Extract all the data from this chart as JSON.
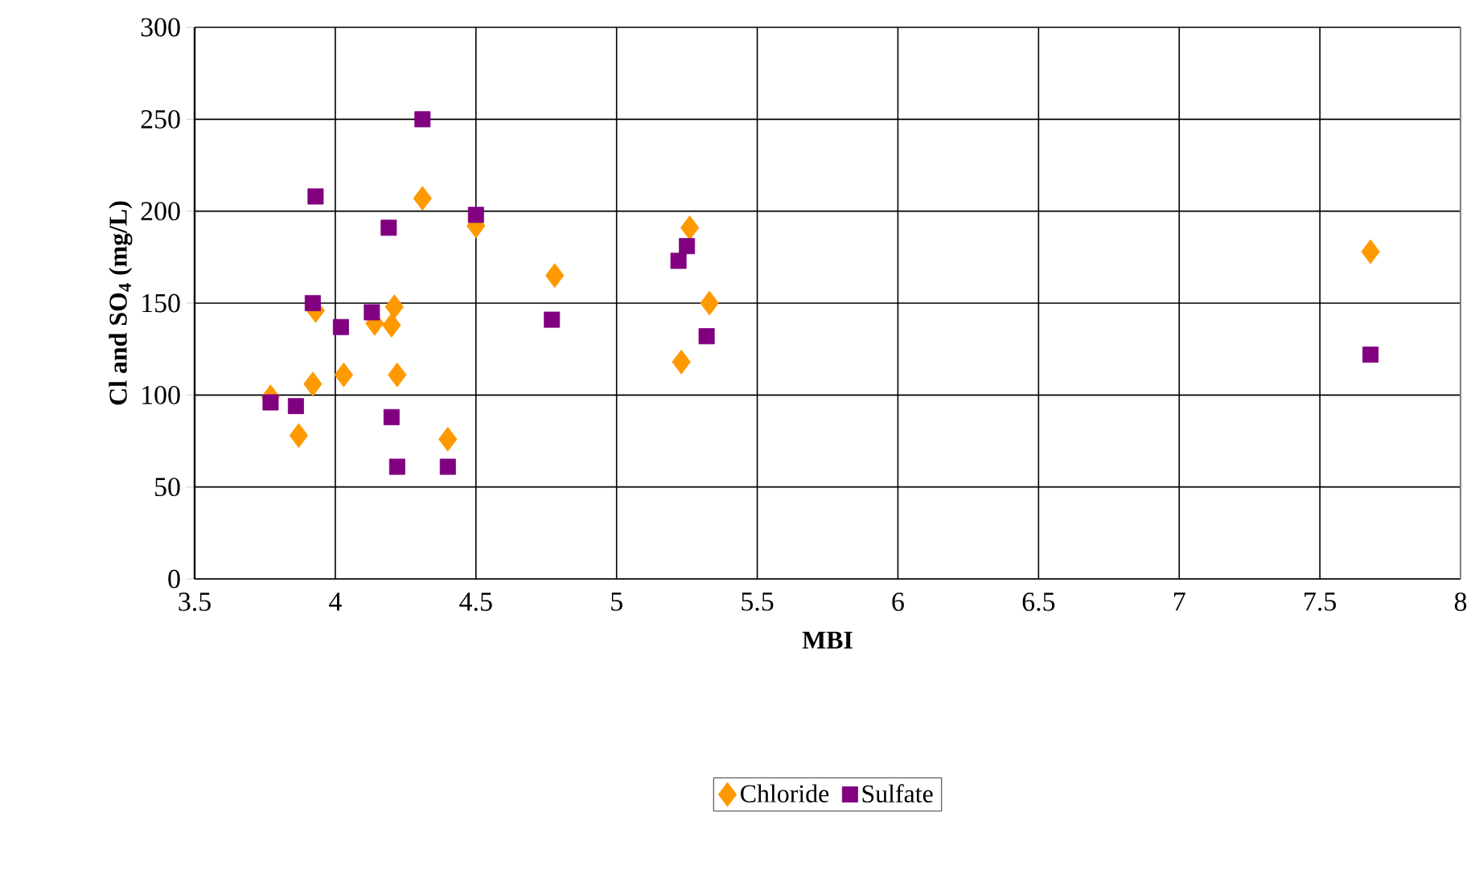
{
  "chart_data": {
    "type": "scatter",
    "xlabel": "MBI",
    "ylabel": "Cl and SO$_{4}$ (mg/L)",
    "xlim": [
      3.5,
      8
    ],
    "xticks": [
      3.5,
      4,
      4.5,
      5,
      5.5,
      6,
      6.5,
      7,
      7.5,
      8
    ],
    "ylim": [
      0,
      300
    ],
    "yticks": [
      0,
      50,
      100,
      150,
      200,
      250,
      300
    ],
    "grid": true,
    "legend": "bottom",
    "series": [
      {
        "name": "Chloride",
        "color": "#ff9900",
        "marker": "diamond",
        "x": [
          3.77,
          3.87,
          3.92,
          3.93,
          4.03,
          4.14,
          4.2,
          4.21,
          4.22,
          4.31,
          4.4,
          4.5,
          4.78,
          5.26,
          5.33,
          5.23,
          7.68
        ],
        "values": [
          99,
          78,
          106,
          146,
          111,
          139,
          138,
          148,
          111,
          207,
          76,
          192,
          165,
          191,
          150,
          118,
          178
        ]
      },
      {
        "name": "Sulfate",
        "color": "#800080",
        "marker": "square",
        "x": [
          3.77,
          3.86,
          3.93,
          3.92,
          4.02,
          4.13,
          4.19,
          4.2,
          4.22,
          4.31,
          4.4,
          4.5,
          4.77,
          5.25,
          5.22,
          5.32,
          7.68
        ],
        "values": [
          96,
          94,
          208,
          150,
          137,
          145,
          191,
          88,
          61,
          250,
          61,
          198,
          141,
          181,
          173,
          132,
          122
        ]
      }
    ]
  }
}
